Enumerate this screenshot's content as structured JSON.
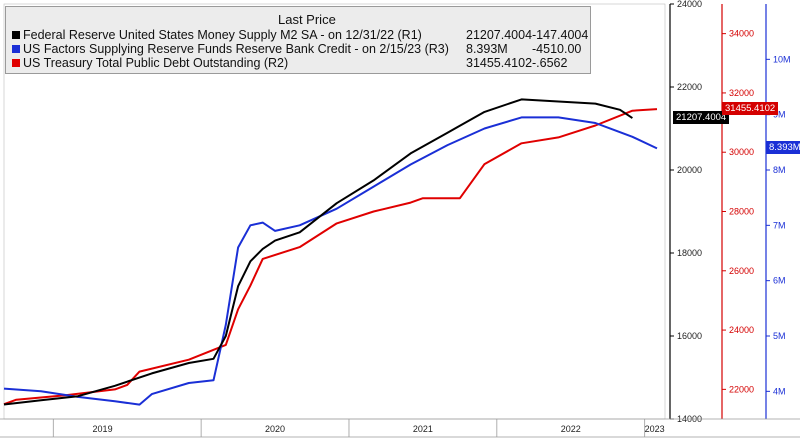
{
  "chart_data": {
    "type": "line",
    "legend_header": "Last Price",
    "x_labels": [
      "2019",
      "2020",
      "2021",
      "2022",
      "2023"
    ],
    "x_range": [
      "2018-09",
      "2023-02"
    ],
    "axes": {
      "R1": {
        "color": "#000000",
        "range": [
          14000,
          24000
        ],
        "ticks": [
          "14000",
          "16000",
          "18000",
          "20000",
          "22000",
          "24000"
        ]
      },
      "R2": {
        "color": "#d40000",
        "range": [
          21000,
          35000
        ],
        "ticks": [
          "22000",
          "24000",
          "26000",
          "28000",
          "30000",
          "32000",
          "34000"
        ]
      },
      "R3": {
        "color": "#1a2fd6",
        "range": [
          3.5,
          11.0
        ],
        "ticks": [
          "4M",
          "5M",
          "6M",
          "7M",
          "8M",
          "9M",
          "10M"
        ],
        "tick_values": [
          4,
          5,
          6,
          7,
          8,
          9,
          10
        ]
      }
    },
    "series": [
      {
        "name": "Federal Reserve United States Money Supply M2 SA -  on 12/31/22  (R1)",
        "axis": "R1",
        "color": "#000000",
        "last": "21207.4004",
        "change": "-147.4004",
        "flag": "21207.4004",
        "points": [
          [
            "2018-09",
            14350
          ],
          [
            "2018-12",
            14450
          ],
          [
            "2019-03",
            14550
          ],
          [
            "2019-06",
            14800
          ],
          [
            "2019-09",
            15100
          ],
          [
            "2019-12",
            15350
          ],
          [
            "2020-02",
            15450
          ],
          [
            "2020-03",
            16000
          ],
          [
            "2020-04",
            17200
          ],
          [
            "2020-05",
            17800
          ],
          [
            "2020-06",
            18100
          ],
          [
            "2020-07",
            18300
          ],
          [
            "2020-09",
            18500
          ],
          [
            "2020-12",
            19200
          ],
          [
            "2021-03",
            19750
          ],
          [
            "2021-06",
            20400
          ],
          [
            "2021-09",
            20900
          ],
          [
            "2021-12",
            21400
          ],
          [
            "2022-03",
            21700
          ],
          [
            "2022-06",
            21650
          ],
          [
            "2022-09",
            21600
          ],
          [
            "2022-11",
            21450
          ],
          [
            "2022-12",
            21250
          ]
        ]
      },
      {
        "name": "US Factors Supplying Reserve Funds Reserve Bank Credit -  on 2/15/23  (R3)",
        "axis": "R3",
        "color": "#1a2fd6",
        "last": "8.393M",
        "change": "-4510.00",
        "flag": "8.393M",
        "points": [
          [
            "2018-09",
            4.05
          ],
          [
            "2018-12",
            4.0
          ],
          [
            "2019-03",
            3.9
          ],
          [
            "2019-06",
            3.82
          ],
          [
            "2019-08",
            3.76
          ],
          [
            "2019-09",
            3.95
          ],
          [
            "2019-12",
            4.15
          ],
          [
            "2020-02",
            4.2
          ],
          [
            "2020-03",
            5.2
          ],
          [
            "2020-04",
            6.6
          ],
          [
            "2020-05",
            7.0
          ],
          [
            "2020-06",
            7.05
          ],
          [
            "2020-07",
            6.9
          ],
          [
            "2020-09",
            7.0
          ],
          [
            "2020-12",
            7.3
          ],
          [
            "2021-03",
            7.7
          ],
          [
            "2021-06",
            8.1
          ],
          [
            "2021-09",
            8.45
          ],
          [
            "2021-12",
            8.75
          ],
          [
            "2022-03",
            8.95
          ],
          [
            "2022-06",
            8.95
          ],
          [
            "2022-09",
            8.85
          ],
          [
            "2022-12",
            8.6
          ],
          [
            "2023-02",
            8.39
          ]
        ]
      },
      {
        "name": "US Treasury Total Public Debt Outstanding  (R2)",
        "axis": "R2",
        "color": "#e00000",
        "last": "31455.4102",
        "change": "-.6562",
        "flag": "31455.4102",
        "points": [
          [
            "2018-09",
            21500
          ],
          [
            "2018-10",
            21650
          ],
          [
            "2019-02",
            21800
          ],
          [
            "2019-06",
            22000
          ],
          [
            "2019-07",
            22150
          ],
          [
            "2019-08",
            22600
          ],
          [
            "2019-12",
            23000
          ],
          [
            "2020-03",
            23500
          ],
          [
            "2020-04",
            24700
          ],
          [
            "2020-05",
            25500
          ],
          [
            "2020-06",
            26400
          ],
          [
            "2020-09",
            26800
          ],
          [
            "2020-12",
            27600
          ],
          [
            "2021-03",
            28000
          ],
          [
            "2021-06",
            28300
          ],
          [
            "2021-07",
            28450
          ],
          [
            "2021-09",
            28450
          ],
          [
            "2021-10",
            28450
          ],
          [
            "2021-12",
            29600
          ],
          [
            "2022-03",
            30300
          ],
          [
            "2022-06",
            30500
          ],
          [
            "2022-09",
            30900
          ],
          [
            "2022-12",
            31400
          ],
          [
            "2023-02",
            31455
          ]
        ]
      }
    ]
  }
}
